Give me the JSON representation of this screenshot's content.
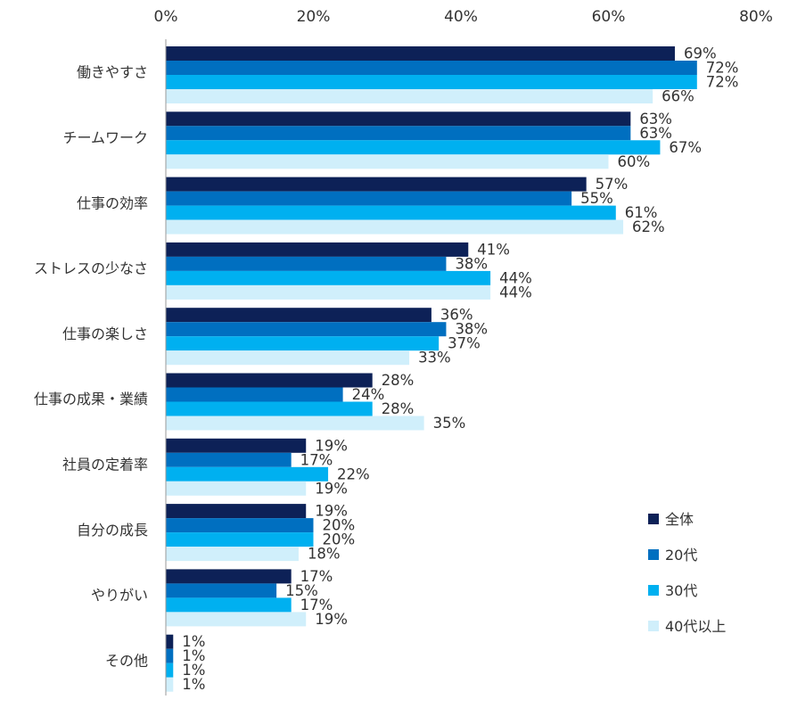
{
  "chart_data": {
    "type": "bar",
    "orientation": "horizontal",
    "title": "",
    "xlabel": "",
    "ylabel": "",
    "xlim": [
      0,
      80
    ],
    "ticks": [
      0,
      20,
      40,
      60,
      80
    ],
    "tick_labels": [
      "0%",
      "20%",
      "40%",
      "60%",
      "80%"
    ],
    "grid": false,
    "legend_position": "bottom-right",
    "categories": [
      "働きやすさ",
      "チームワーク",
      "仕事の効率",
      "ストレスの少なさ",
      "仕事の楽しさ",
      "仕事の成果・業績",
      "社員の定着率",
      "自分の成長",
      "やりがい",
      "その他"
    ],
    "series": [
      {
        "name": "全体",
        "color": "#0d2157",
        "values": [
          69,
          63,
          57,
          41,
          36,
          28,
          19,
          19,
          17,
          1
        ]
      },
      {
        "name": "20代",
        "color": "#006fc0",
        "values": [
          72,
          63,
          55,
          38,
          38,
          24,
          17,
          20,
          15,
          1
        ]
      },
      {
        "name": "30代",
        "color": "#00b0f0",
        "values": [
          72,
          67,
          61,
          44,
          37,
          28,
          22,
          20,
          17,
          1
        ]
      },
      {
        "name": "40代以上",
        "color": "#d0effb",
        "values": [
          66,
          60,
          62,
          44,
          33,
          35,
          19,
          18,
          19,
          1
        ]
      }
    ]
  }
}
